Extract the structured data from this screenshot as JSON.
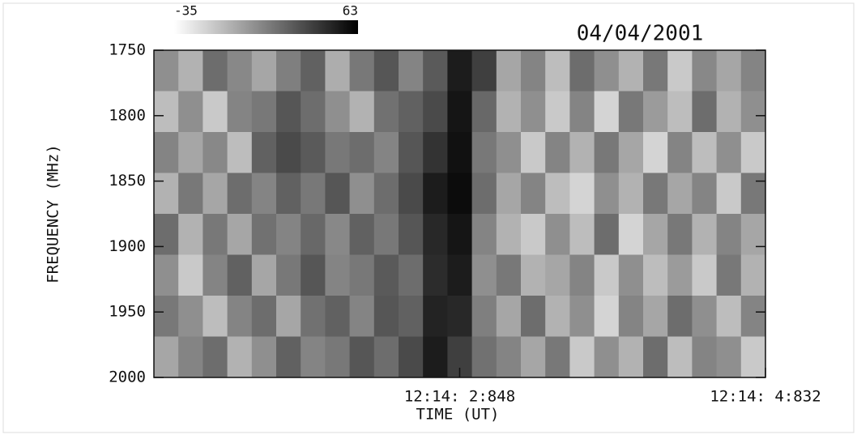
{
  "chart_data": {
    "type": "heatmap",
    "title": "04/04/2001",
    "xlabel": "TIME (UT)",
    "ylabel": "FREQUENCY (MHz)",
    "zlim": [
      -35,
      63
    ],
    "xlim": [
      0.864,
      4.832
    ],
    "xticks": [
      {
        "value": 2.848,
        "label": "12:14: 2:848"
      },
      {
        "value": 4.832,
        "label": "12:14: 4:832"
      }
    ],
    "ylim": [
      2000,
      1750
    ],
    "yticks": [
      1750,
      1800,
      1850,
      1900,
      1950,
      2000
    ],
    "z": [
      [
        5,
        -10,
        20,
        8,
        -5,
        12,
        25,
        -8,
        15,
        30,
        10,
        28,
        55,
        40,
        -5,
        10,
        -15,
        20,
        5,
        -10,
        15,
        -20,
        8,
        -5,
        10
      ],
      [
        -15,
        5,
        -20,
        10,
        15,
        30,
        20,
        5,
        -10,
        18,
        25,
        35,
        58,
        22,
        -10,
        5,
        -20,
        10,
        -25,
        15,
        0,
        -15,
        20,
        -10,
        5
      ],
      [
        10,
        -5,
        8,
        -15,
        25,
        35,
        28,
        15,
        20,
        10,
        30,
        45,
        60,
        15,
        5,
        -20,
        10,
        -10,
        15,
        -5,
        -25,
        10,
        -15,
        5,
        -20
      ],
      [
        -10,
        15,
        -5,
        20,
        10,
        25,
        15,
        30,
        5,
        20,
        35,
        55,
        62,
        20,
        -5,
        10,
        -15,
        -25,
        5,
        -10,
        15,
        -5,
        10,
        -20,
        15
      ],
      [
        20,
        -10,
        15,
        -5,
        18,
        10,
        22,
        8,
        25,
        15,
        30,
        50,
        58,
        10,
        -10,
        -20,
        5,
        -15,
        20,
        -25,
        -5,
        15,
        -10,
        10,
        -5
      ],
      [
        5,
        -20,
        10,
        25,
        -5,
        15,
        30,
        10,
        15,
        28,
        20,
        48,
        55,
        5,
        15,
        -10,
        -5,
        10,
        -20,
        5,
        -15,
        0,
        -20,
        15,
        -10
      ],
      [
        15,
        5,
        -15,
        10,
        20,
        -5,
        18,
        25,
        10,
        30,
        25,
        52,
        50,
        12,
        -5,
        20,
        -10,
        5,
        -25,
        10,
        -5,
        20,
        5,
        -15,
        10
      ],
      [
        -5,
        10,
        20,
        -10,
        5,
        25,
        10,
        15,
        30,
        20,
        35,
        55,
        40,
        18,
        10,
        -5,
        15,
        -20,
        5,
        -10,
        20,
        -15,
        10,
        5,
        -20
      ]
    ]
  }
}
